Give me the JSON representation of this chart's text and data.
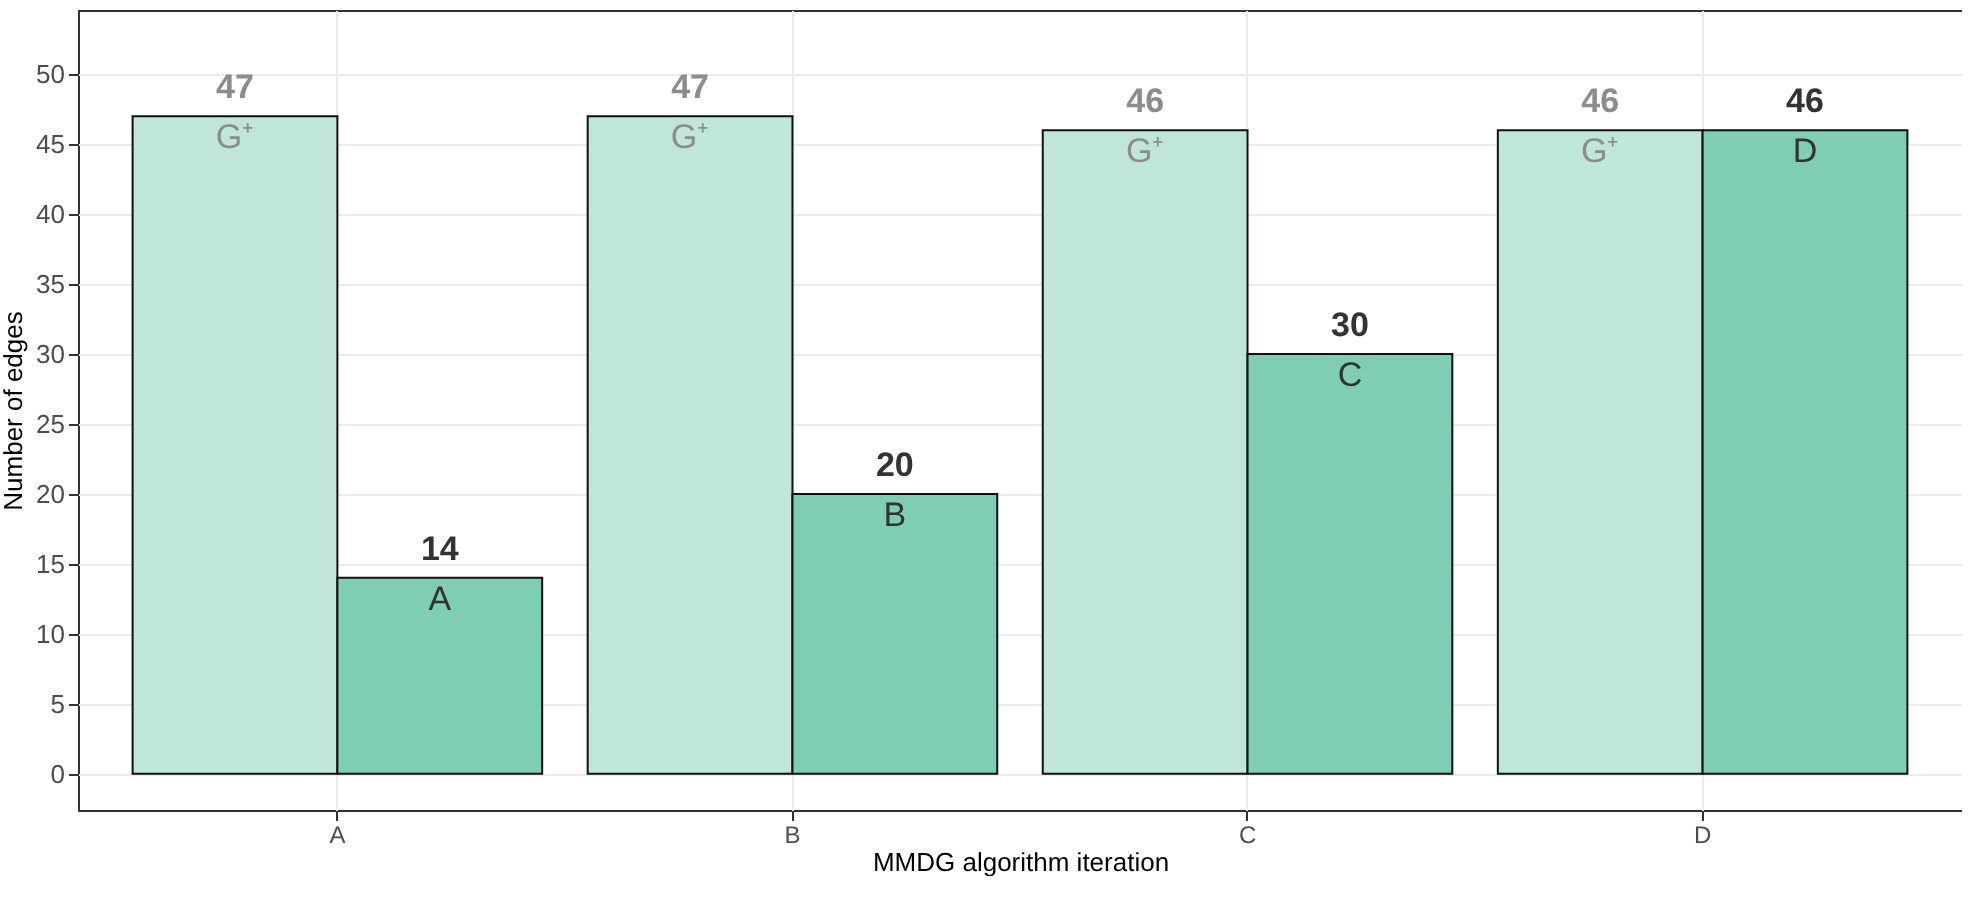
{
  "chart_data": {
    "type": "bar",
    "xlabel": "MMDG algorithm iteration",
    "ylabel": "Number of edges",
    "categories": [
      "A",
      "B",
      "C",
      "D"
    ],
    "series": [
      {
        "name": "G⁺",
        "color": "#c0e6da",
        "values": [
          47,
          47,
          46,
          46
        ]
      },
      {
        "color": "#80cdb5",
        "values": [
          14,
          20,
          30,
          46
        ]
      }
    ],
    "ylim": [
      -2.6,
      54.6
    ],
    "yticks": [
      0,
      5,
      10,
      15,
      20,
      25,
      30,
      35,
      40,
      45,
      50
    ],
    "data_labels": true,
    "grid": true,
    "annotations": [
      {
        "text": "A",
        "x": "A",
        "y": 14
      },
      {
        "text": "B",
        "x": "B",
        "y": 20
      },
      {
        "text": "C",
        "x": "C",
        "y": 30
      },
      {
        "text": "D",
        "x": "D",
        "y": 46
      }
    ]
  }
}
